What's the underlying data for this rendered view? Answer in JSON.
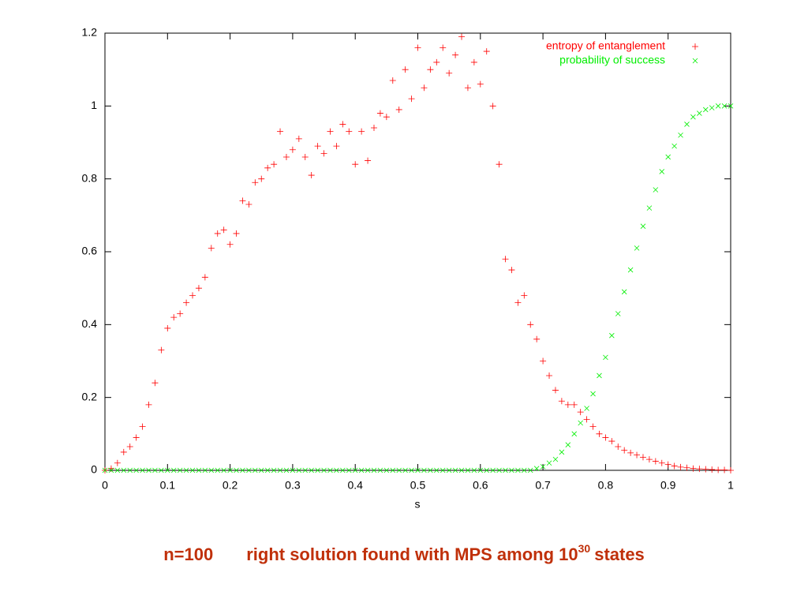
{
  "chart_data": {
    "type": "scatter",
    "x_label": "s",
    "x": [
      0,
      0.01,
      0.02,
      0.03,
      0.04,
      0.05,
      0.06,
      0.07,
      0.08,
      0.09,
      0.1,
      0.11,
      0.12,
      0.13,
      0.14,
      0.15,
      0.16,
      0.17,
      0.18,
      0.19,
      0.2,
      0.21,
      0.22,
      0.23,
      0.24,
      0.25,
      0.26,
      0.27,
      0.28,
      0.29,
      0.3,
      0.31,
      0.32,
      0.33,
      0.34,
      0.35,
      0.36,
      0.37,
      0.38,
      0.39,
      0.4,
      0.41,
      0.42,
      0.43,
      0.44,
      0.45,
      0.46,
      0.47,
      0.48,
      0.49,
      0.5,
      0.51,
      0.52,
      0.53,
      0.54,
      0.55,
      0.56,
      0.57,
      0.58,
      0.59,
      0.6,
      0.61,
      0.62,
      0.63,
      0.64,
      0.65,
      0.66,
      0.67,
      0.68,
      0.69,
      0.7,
      0.71,
      0.72,
      0.73,
      0.74,
      0.75,
      0.76,
      0.77,
      0.78,
      0.79,
      0.8,
      0.81,
      0.82,
      0.83,
      0.84,
      0.85,
      0.86,
      0.87,
      0.88,
      0.89,
      0.9,
      0.91,
      0.92,
      0.93,
      0.94,
      0.95,
      0.96,
      0.97,
      0.98,
      0.99,
      1
    ],
    "series": [
      {
        "name": "entropy of entanglement",
        "color": "#ff0000",
        "marker": "plus",
        "values": [
          0,
          0.005,
          0.02,
          0.05,
          0.065,
          0.09,
          0.12,
          0.18,
          0.24,
          0.33,
          0.39,
          0.42,
          0.43,
          0.46,
          0.48,
          0.5,
          0.53,
          0.61,
          0.65,
          0.66,
          0.62,
          0.65,
          0.74,
          0.73,
          0.79,
          0.8,
          0.83,
          0.84,
          0.93,
          0.86,
          0.88,
          0.91,
          0.86,
          0.81,
          0.89,
          0.87,
          0.93,
          0.89,
          0.95,
          0.93,
          0.84,
          0.93,
          0.85,
          0.94,
          0.98,
          0.97,
          1.07,
          0.99,
          1.1,
          1.02,
          1.16,
          1.05,
          1.1,
          1.12,
          1.16,
          1.09,
          1.14,
          1.19,
          1.05,
          1.12,
          1.06,
          1.15,
          1.0,
          0.84,
          0.58,
          0.55,
          0.46,
          0.48,
          0.4,
          0.36,
          0.3,
          0.26,
          0.22,
          0.19,
          0.18,
          0.18,
          0.16,
          0.14,
          0.12,
          0.1,
          0.09,
          0.08,
          0.065,
          0.055,
          0.048,
          0.042,
          0.036,
          0.03,
          0.025,
          0.02,
          0.016,
          0.012,
          0.009,
          0.007,
          0.005,
          0.004,
          0.003,
          0.002,
          0.001,
          0.001,
          0
        ]
      },
      {
        "name": "probability of success",
        "color": "#00ee00",
        "marker": "cross",
        "values": [
          0,
          0,
          0,
          0,
          0,
          0,
          0,
          0,
          0,
          0,
          0,
          0,
          0,
          0,
          0,
          0,
          0,
          0,
          0,
          0,
          0,
          0,
          0,
          0,
          0,
          0,
          0,
          0,
          0,
          0,
          0,
          0,
          0,
          0,
          0,
          0,
          0,
          0,
          0,
          0,
          0,
          0,
          0,
          0,
          0,
          0,
          0,
          0,
          0,
          0,
          0,
          0,
          0,
          0,
          0,
          0,
          0,
          0,
          0,
          0,
          0,
          0,
          0,
          0,
          0,
          0,
          0,
          0,
          0,
          0.005,
          0.01,
          0.02,
          0.03,
          0.05,
          0.07,
          0.1,
          0.13,
          0.17,
          0.21,
          0.26,
          0.31,
          0.37,
          0.43,
          0.49,
          0.55,
          0.61,
          0.67,
          0.72,
          0.77,
          0.82,
          0.86,
          0.89,
          0.92,
          0.95,
          0.97,
          0.98,
          0.99,
          0.995,
          1.0,
          1.0,
          1.0
        ]
      }
    ],
    "xlim": [
      0,
      1
    ],
    "xticks": [
      0,
      0.1,
      0.2,
      0.3,
      0.4,
      0.5,
      0.6,
      0.7,
      0.8,
      0.9,
      1
    ],
    "ylim": [
      0,
      1.2
    ],
    "yticks": [
      0,
      0.2,
      0.4,
      0.6,
      0.8,
      1,
      1.2
    ],
    "grid": false,
    "legend": "top-right"
  },
  "footer": {
    "label": "n=100",
    "text": "right solution found with MPS among 10",
    "exponent": "30",
    "suffix": "states"
  }
}
